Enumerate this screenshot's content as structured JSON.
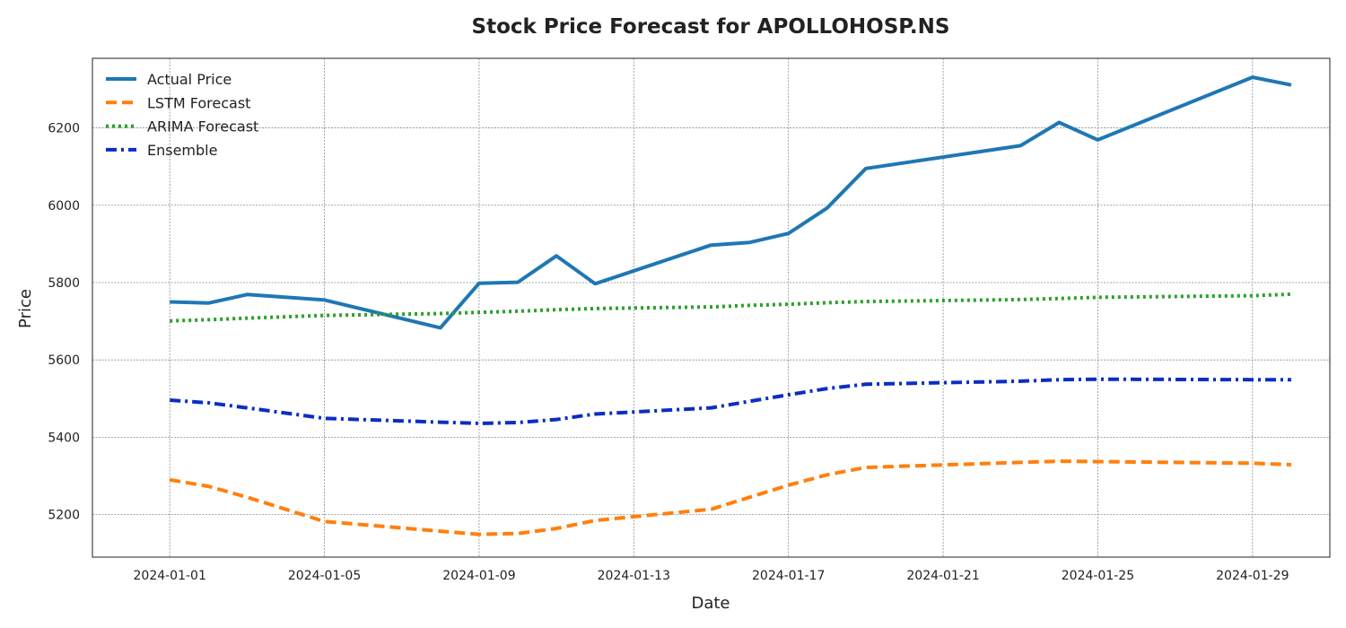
{
  "chart_data": {
    "type": "line",
    "title": "Stock Price Forecast for APOLLOHOSP.NS",
    "xlabel": "Date",
    "ylabel": "Price",
    "ylim": [
      5090,
      6380
    ],
    "yticks": [
      5200,
      5400,
      5600,
      5800,
      6000,
      6200
    ],
    "xlim": [
      "2023-12-30",
      "2024-01-31"
    ],
    "xticks": [
      "2024-01-01",
      "2024-01-05",
      "2024-01-09",
      "2024-01-13",
      "2024-01-17",
      "2024-01-21",
      "2024-01-25",
      "2024-01-29"
    ],
    "grid": true,
    "legend_position": "top-left",
    "x": [
      "2024-01-01",
      "2024-01-02",
      "2024-01-03",
      "2024-01-05",
      "2024-01-08",
      "2024-01-09",
      "2024-01-10",
      "2024-01-11",
      "2024-01-12",
      "2024-01-15",
      "2024-01-16",
      "2024-01-17",
      "2024-01-18",
      "2024-01-19",
      "2024-01-23",
      "2024-01-24",
      "2024-01-25",
      "2024-01-29",
      "2024-01-30"
    ],
    "series": [
      {
        "name": "Actual Price",
        "color": "#1f77b4",
        "style": "solid",
        "values": [
          5750,
          5747,
          5769,
          5755,
          5683,
          5798,
          5801,
          5869,
          5797,
          5897,
          5904,
          5927,
          5993,
          6095,
          6154,
          6214,
          6169,
          6331,
          6311
        ]
      },
      {
        "name": "LSTM Forecast",
        "color": "#ff7f0e",
        "style": "dashed",
        "values": [
          5290,
          5273,
          5245,
          5182,
          5157,
          5149,
          5151,
          5164,
          5185,
          5214,
          5245,
          5276,
          5303,
          5322,
          5335,
          5338,
          5337,
          5333,
          5329
        ]
      },
      {
        "name": "ARIMA Forecast",
        "color": "#2ca02c",
        "style": "dotted",
        "values": [
          5701,
          5704,
          5708,
          5715,
          5720,
          5723,
          5726,
          5730,
          5733,
          5737,
          5741,
          5744,
          5748,
          5751,
          5756,
          5759,
          5762,
          5766,
          5770
        ]
      },
      {
        "name": "Ensemble",
        "color": "#0a2ec4",
        "style": "dashdot",
        "values": [
          5496,
          5489,
          5476,
          5449,
          5439,
          5436,
          5438,
          5446,
          5460,
          5476,
          5493,
          5510,
          5526,
          5537,
          5545,
          5549,
          5550,
          5549,
          5549
        ]
      }
    ]
  }
}
